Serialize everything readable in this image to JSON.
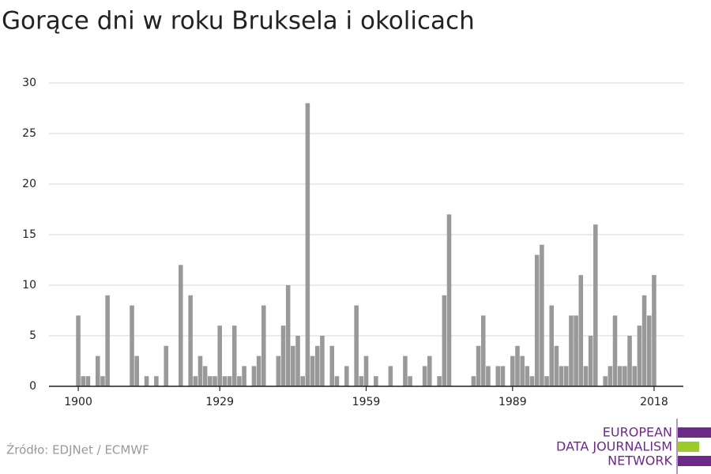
{
  "chart_data": {
    "type": "bar",
    "title": "Gorące dni w roku Bruksela i okolicach",
    "source": "Źródło: EDJNet / ECMWF",
    "logo_lines": [
      "EUROPEAN",
      "DATA JOURNALISM",
      "NETWORK"
    ],
    "color": "#999999",
    "x": [
      1900,
      1901,
      1902,
      1903,
      1904,
      1905,
      1906,
      1907,
      1908,
      1909,
      1910,
      1911,
      1912,
      1913,
      1914,
      1915,
      1916,
      1917,
      1918,
      1919,
      1920,
      1921,
      1922,
      1923,
      1924,
      1925,
      1926,
      1927,
      1928,
      1929,
      1930,
      1931,
      1932,
      1933,
      1934,
      1935,
      1936,
      1937,
      1938,
      1939,
      1940,
      1941,
      1942,
      1943,
      1944,
      1945,
      1946,
      1947,
      1948,
      1949,
      1950,
      1951,
      1952,
      1953,
      1954,
      1955,
      1956,
      1957,
      1958,
      1959,
      1960,
      1961,
      1962,
      1963,
      1964,
      1965,
      1966,
      1967,
      1968,
      1969,
      1970,
      1971,
      1972,
      1973,
      1974,
      1975,
      1976,
      1977,
      1978,
      1979,
      1980,
      1981,
      1982,
      1983,
      1984,
      1985,
      1986,
      1987,
      1988,
      1989,
      1990,
      1991,
      1992,
      1993,
      1994,
      1995,
      1996,
      1997,
      1998,
      1999,
      2000,
      2001,
      2002,
      2003,
      2004,
      2005,
      2006,
      2007,
      2008,
      2009,
      2010,
      2011,
      2012,
      2013,
      2014,
      2015,
      2016,
      2017,
      2018
    ],
    "values": [
      7,
      1,
      1,
      0,
      3,
      1,
      9,
      0,
      0,
      0,
      0,
      8,
      3,
      0,
      1,
      0,
      1,
      0,
      4,
      0,
      0,
      12,
      0,
      9,
      1,
      3,
      2,
      1,
      1,
      6,
      1,
      1,
      6,
      1,
      2,
      0,
      2,
      3,
      8,
      0,
      0,
      3,
      6,
      10,
      4,
      5,
      1,
      28,
      3,
      4,
      5,
      0,
      4,
      1,
      0,
      2,
      0,
      8,
      1,
      3,
      0,
      1,
      0,
      0,
      2,
      0,
      0,
      3,
      1,
      0,
      0,
      2,
      3,
      0,
      1,
      9,
      17,
      0,
      0,
      0,
      0,
      1,
      4,
      7,
      2,
      0,
      2,
      2,
      0,
      3,
      4,
      3,
      2,
      1,
      13,
      14,
      1,
      8,
      4,
      2,
      2,
      7,
      7,
      11,
      2,
      5,
      16,
      0,
      1,
      2,
      7,
      2,
      2,
      5,
      2,
      6,
      9,
      7,
      11
    ],
    "xlim": [
      1894,
      2024
    ],
    "xticks": [
      1900,
      1929,
      1959,
      1989,
      2018
    ],
    "ylim": [
      0,
      30
    ],
    "yticks": [
      0,
      5,
      10,
      15,
      20,
      25,
      30
    ],
    "grid": true
  }
}
